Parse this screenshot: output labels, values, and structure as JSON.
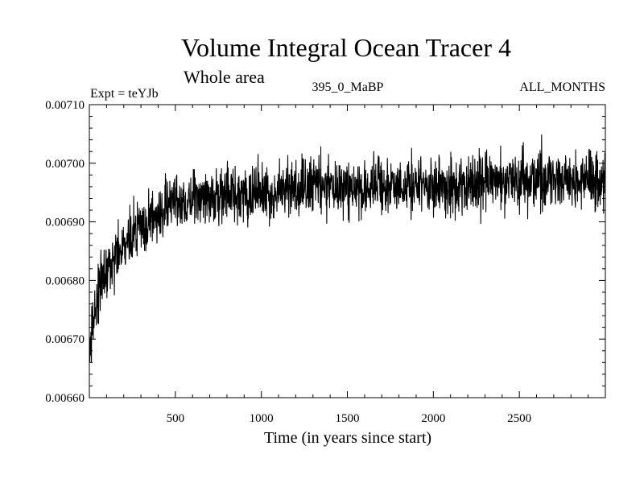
{
  "chart_data": {
    "type": "line",
    "title": "Volume Integral Ocean Tracer 4",
    "subtitle": "Whole area",
    "experiment_label": "Expt = teYJb",
    "period_label": "395_0_MaBP",
    "season_label": "ALL_MONTHS",
    "xlabel": "Time (in years since start)",
    "ylabel": "",
    "xlim": [
      0,
      3000
    ],
    "ylim": [
      0.0066,
      0.0071
    ],
    "x_ticks": [
      500,
      1000,
      1500,
      2000,
      2500
    ],
    "x_tick_labels": [
      "500",
      "1000",
      "1500",
      "2000",
      "2500"
    ],
    "y_ticks": [
      0.0066,
      0.0067,
      0.0068,
      0.0069,
      0.007,
      0.0071
    ],
    "y_tick_labels": [
      "0.00660",
      "0.00670",
      "0.00680",
      "0.00690",
      "0.00700",
      "0.00710"
    ],
    "grid": false,
    "series": [
      {
        "name": "Ocean Tracer 4 volume integral",
        "color": "#000000",
        "x": [
          0,
          25,
          50,
          75,
          100,
          150,
          200,
          250,
          300,
          350,
          400,
          450,
          500,
          600,
          700,
          800,
          900,
          1000,
          1200,
          1400,
          1600,
          1800,
          2000,
          2200,
          2400,
          2600,
          2800,
          3000
        ],
        "values": [
          0.00668,
          0.00673,
          0.00677,
          0.0068,
          0.00682,
          0.00684,
          0.00686,
          0.00688,
          0.00689,
          0.0069,
          0.00691,
          0.00692,
          0.00693,
          0.00694,
          0.00694,
          0.00695,
          0.00695,
          0.00695,
          0.00696,
          0.00696,
          0.00696,
          0.00696,
          0.00696,
          0.00696,
          0.00697,
          0.00697,
          0.00697,
          0.00697
        ],
        "noise_amplitude": 3e-05
      }
    ]
  }
}
